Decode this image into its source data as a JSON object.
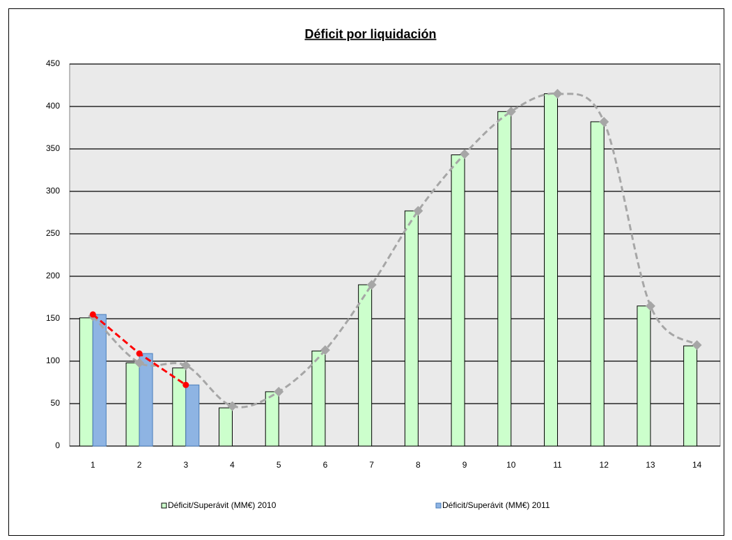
{
  "chart_data": {
    "type": "bar",
    "title": "Déficit por liquidación",
    "categories": [
      "1",
      "2",
      "3",
      "4",
      "5",
      "6",
      "7",
      "8",
      "9",
      "10",
      "11",
      "12",
      "13",
      "14"
    ],
    "series": [
      {
        "name": "Déficit/Superávit (MM€) 2010",
        "type": "bar",
        "color": "#ccffcc",
        "values": [
          151,
          98,
          92,
          45,
          64,
          112,
          190,
          277,
          343,
          394,
          415,
          382,
          165,
          118
        ]
      },
      {
        "name": "Déficit/Superávit (MM€) 2011",
        "type": "bar",
        "color": "#8eb4e3",
        "values": [
          155,
          109,
          72,
          null,
          null,
          null,
          null,
          null,
          null,
          null,
          null,
          null,
          null,
          null
        ]
      },
      {
        "type": "line",
        "color": "#a6a6a6",
        "marker": "diamond",
        "smooth": true,
        "values": [
          153,
          98,
          95,
          47,
          64,
          113,
          190,
          277,
          344,
          394,
          415,
          382,
          165,
          119
        ]
      },
      {
        "type": "line",
        "color": "#ff0000",
        "marker": "circle",
        "smooth": false,
        "values": [
          155,
          109,
          72,
          null,
          null,
          null,
          null,
          null,
          null,
          null,
          null,
          null,
          null,
          null
        ]
      }
    ],
    "ylim": [
      0,
      450
    ],
    "yticks": [
      0,
      50,
      100,
      150,
      200,
      250,
      300,
      350,
      400,
      450
    ],
    "grid": true
  }
}
